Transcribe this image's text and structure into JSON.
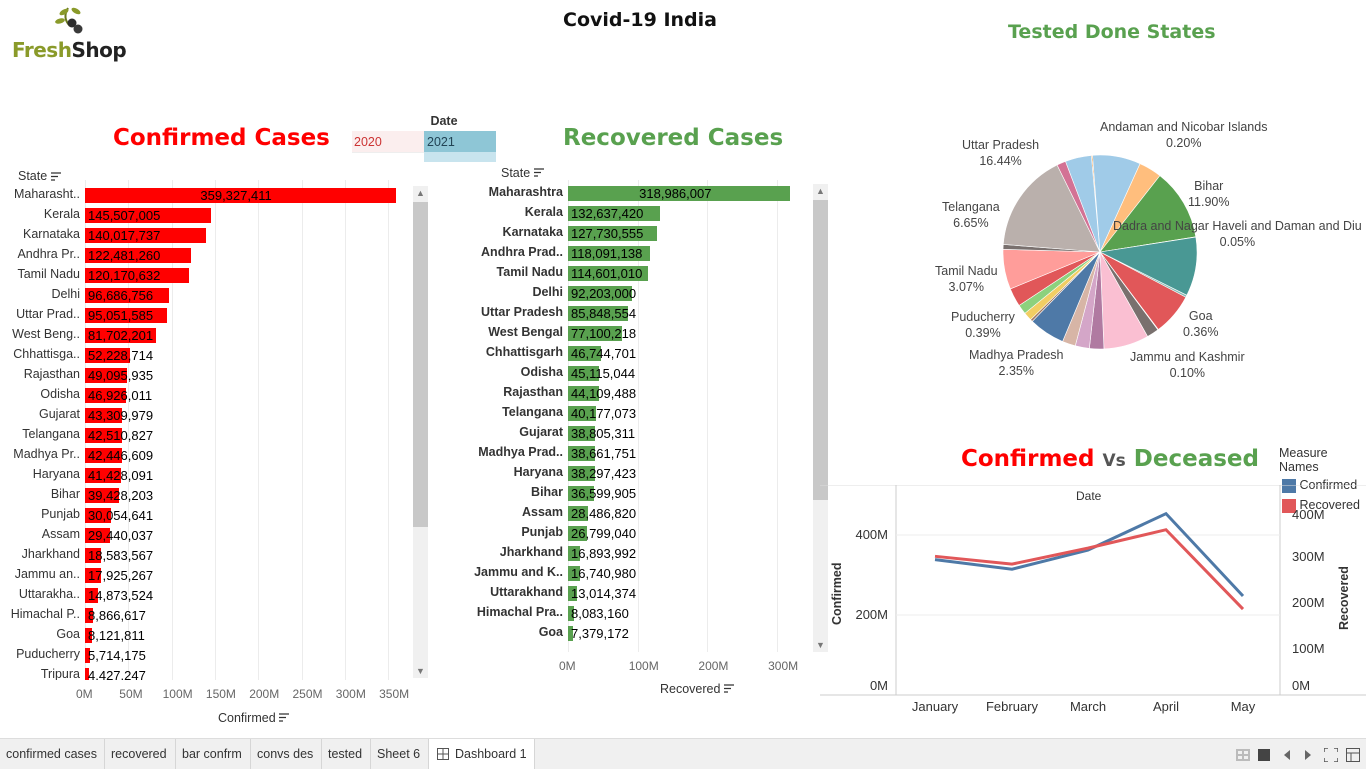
{
  "logo": {
    "word1": "Fresh",
    "word2": "Shop"
  },
  "header": {
    "title": "Covid-19 India"
  },
  "date_filter": {
    "label": "Date",
    "years": [
      "2020",
      "2021"
    ]
  },
  "confirmed": {
    "title": "Confirmed Cases",
    "state_header": "State",
    "axis_title": "Confirmed",
    "ticks": [
      "0M",
      "50M",
      "100M",
      "150M",
      "200M",
      "250M",
      "300M",
      "350M"
    ],
    "color": "#ff0000",
    "rows": [
      {
        "label": "Maharasht..",
        "value": 359327411,
        "text": "359,327,411"
      },
      {
        "label": "Kerala",
        "value": 145507005,
        "text": "145,507,005"
      },
      {
        "label": "Karnataka",
        "value": 140017737,
        "text": "140,017,737"
      },
      {
        "label": "Andhra Pr..",
        "value": 122481260,
        "text": "122,481,260"
      },
      {
        "label": "Tamil Nadu",
        "value": 120170632,
        "text": "120,170,632"
      },
      {
        "label": "Delhi",
        "value": 96686756,
        "text": "96,686,756"
      },
      {
        "label": "Uttar Prad..",
        "value": 95051585,
        "text": "95,051,585"
      },
      {
        "label": "West Beng..",
        "value": 81702201,
        "text": "81,702,201"
      },
      {
        "label": "Chhattisga..",
        "value": 52228714,
        "text": "52,228,714"
      },
      {
        "label": "Rajasthan",
        "value": 49095935,
        "text": "49,095,935"
      },
      {
        "label": "Odisha",
        "value": 46926011,
        "text": "46,926,011"
      },
      {
        "label": "Gujarat",
        "value": 43309979,
        "text": "43,309,979"
      },
      {
        "label": "Telangana",
        "value": 42510827,
        "text": "42,510,827"
      },
      {
        "label": "Madhya Pr..",
        "value": 42446609,
        "text": "42,446,609"
      },
      {
        "label": "Haryana",
        "value": 41428091,
        "text": "41,428,091"
      },
      {
        "label": "Bihar",
        "value": 39428203,
        "text": "39,428,203"
      },
      {
        "label": "Punjab",
        "value": 30054641,
        "text": "30,054,641"
      },
      {
        "label": "Assam",
        "value": 29440037,
        "text": "29,440,037"
      },
      {
        "label": "Jharkhand",
        "value": 18583567,
        "text": "18,583,567"
      },
      {
        "label": "Jammu an..",
        "value": 17925267,
        "text": "17,925,267"
      },
      {
        "label": "Uttarakha..",
        "value": 14873524,
        "text": "14,873,524"
      },
      {
        "label": "Himachal P..",
        "value": 8866617,
        "text": "8,866,617"
      },
      {
        "label": "Goa",
        "value": 8121811,
        "text": "8,121,811"
      },
      {
        "label": "Puducherry",
        "value": 5714175,
        "text": "5,714,175"
      },
      {
        "label": "Tripura",
        "value": 4427247,
        "text": "4,427,247"
      }
    ]
  },
  "recovered": {
    "title": "Recovered Cases",
    "state_header": "State",
    "axis_title": "Recovered",
    "ticks": [
      "0M",
      "100M",
      "200M",
      "300M"
    ],
    "color": "#59a14f",
    "rows": [
      {
        "label": "Maharashtra",
        "value": 318986007,
        "text": "318,986,007"
      },
      {
        "label": "Kerala",
        "value": 132637420,
        "text": "132,637,420"
      },
      {
        "label": "Karnataka",
        "value": 127730555,
        "text": "127,730,555"
      },
      {
        "label": "Andhra Prad..",
        "value": 118091138,
        "text": "118,091,138"
      },
      {
        "label": "Tamil Nadu",
        "value": 114601010,
        "text": "114,601,010"
      },
      {
        "label": "Delhi",
        "value": 92203000,
        "text": "92,203,000"
      },
      {
        "label": "Uttar Pradesh",
        "value": 85848554,
        "text": "85,848,554"
      },
      {
        "label": "West Bengal",
        "value": 77100218,
        "text": "77,100,218"
      },
      {
        "label": "Chhattisgarh",
        "value": 46744701,
        "text": "46,744,701"
      },
      {
        "label": "Odisha",
        "value": 45115044,
        "text": "45,115,044"
      },
      {
        "label": "Rajasthan",
        "value": 44109488,
        "text": "44,109,488"
      },
      {
        "label": "Telangana",
        "value": 40177073,
        "text": "40,177,073"
      },
      {
        "label": "Gujarat",
        "value": 38805311,
        "text": "38,805,311"
      },
      {
        "label": "Madhya Prad..",
        "value": 38661751,
        "text": "38,661,751"
      },
      {
        "label": "Haryana",
        "value": 38297423,
        "text": "38,297,423"
      },
      {
        "label": "Bihar",
        "value": 36599905,
        "text": "36,599,905"
      },
      {
        "label": "Assam",
        "value": 28486820,
        "text": "28,486,820"
      },
      {
        "label": "Punjab",
        "value": 26799040,
        "text": "26,799,040"
      },
      {
        "label": "Jharkhand",
        "value": 16893992,
        "text": "16,893,992"
      },
      {
        "label": "Jammu and K..",
        "value": 16740980,
        "text": "16,740,980"
      },
      {
        "label": "Uttarakhand",
        "value": 13014374,
        "text": "13,014,374"
      },
      {
        "label": "Himachal Pra..",
        "value": 8083160,
        "text": "8,083,160"
      },
      {
        "label": "Goa",
        "value": 7379172,
        "text": "7,379,172"
      }
    ]
  },
  "pie": {
    "title": "Tested Done States",
    "labels": [
      {
        "name": "Andaman and Nicobar Islands",
        "pct": "0.20%"
      },
      {
        "name": "Bihar",
        "pct": "11.90%"
      },
      {
        "name": "Dadra and Nagar Haveli and Daman and Diu",
        "pct": "0.05%"
      },
      {
        "name": "Goa",
        "pct": "0.36%"
      },
      {
        "name": "Jammu and Kashmir",
        "pct": "0.10%"
      },
      {
        "name": "Madhya Pradesh",
        "pct": "2.35%"
      },
      {
        "name": "Puducherry",
        "pct": "0.39%"
      },
      {
        "name": "Tamil Nadu",
        "pct": "3.07%"
      },
      {
        "name": "Telangana",
        "pct": "6.65%"
      },
      {
        "name": "Uttar Pradesh",
        "pct": "16.44%"
      }
    ],
    "slices": [
      {
        "pct": 0.2,
        "color": "#f28e2b"
      },
      {
        "pct": 8.0,
        "color": "#a0cbe8"
      },
      {
        "pct": 3.8,
        "color": "#ffbe7d"
      },
      {
        "pct": 11.9,
        "color": "#59a14f"
      },
      {
        "pct": 0.05,
        "color": "#b6992d"
      },
      {
        "pct": 9.8,
        "color": "#499894"
      },
      {
        "pct": 0.36,
        "color": "#86bcb6"
      },
      {
        "pct": 7.0,
        "color": "#e15759"
      },
      {
        "pct": 0.1,
        "color": "#ff9d9a"
      },
      {
        "pct": 2.0,
        "color": "#79706e"
      },
      {
        "pct": 7.5,
        "color": "#fabfd2"
      },
      {
        "pct": 2.4,
        "color": "#b07aa1"
      },
      {
        "pct": 2.35,
        "color": "#d4a6c8"
      },
      {
        "pct": 2.2,
        "color": "#d7b5a6"
      },
      {
        "pct": 6.0,
        "color": "#4e79a7"
      },
      {
        "pct": 0.39,
        "color": "#9d7660"
      },
      {
        "pct": 1.4,
        "color": "#f1ce63"
      },
      {
        "pct": 1.6,
        "color": "#8cd17d"
      },
      {
        "pct": 3.07,
        "color": "#e15759"
      },
      {
        "pct": 6.65,
        "color": "#ff9d9a"
      },
      {
        "pct": 0.8,
        "color": "#79706e"
      },
      {
        "pct": 16.44,
        "color": "#bab0ac"
      },
      {
        "pct": 1.5,
        "color": "#d37295"
      },
      {
        "pct": 4.35,
        "color": "#a0cbe8"
      }
    ]
  },
  "line": {
    "title_a": "Confirmed",
    "title_vs": "Vs",
    "title_b": "Deceased",
    "x_title": "Date",
    "left_axis_title": "Confirmed",
    "right_axis_title": "Recovered",
    "left_ticks": [
      "400M",
      "200M",
      "0M"
    ],
    "right_ticks": [
      "400M",
      "300M",
      "200M",
      "100M",
      "0M"
    ],
    "legend_title": "Measure Names",
    "legend": [
      {
        "name": "Confirmed",
        "color": "#4e79a7"
      },
      {
        "name": "Recovered",
        "color": "#e15759"
      }
    ]
  },
  "chart_data": [
    {
      "type": "bar",
      "title": "Confirmed Cases",
      "xlabel": "Confirmed",
      "ylabel": "State",
      "xlim": [
        0,
        370000000
      ],
      "categories": [
        "Maharasht..",
        "Kerala",
        "Karnataka",
        "Andhra Pr..",
        "Tamil Nadu",
        "Delhi",
        "Uttar Prad..",
        "West Beng..",
        "Chhattisga..",
        "Rajasthan",
        "Odisha",
        "Gujarat",
        "Telangana",
        "Madhya Pr..",
        "Haryana",
        "Bihar",
        "Punjab",
        "Assam",
        "Jharkhand",
        "Jammu an..",
        "Uttarakha..",
        "Himachal P..",
        "Goa",
        "Puducherry",
        "Tripura"
      ],
      "values": [
        359327411,
        145507005,
        140017737,
        122481260,
        120170632,
        96686756,
        95051585,
        81702201,
        52228714,
        49095935,
        46926011,
        43309979,
        42510827,
        42446609,
        41428091,
        39428203,
        30054641,
        29440037,
        18583567,
        17925267,
        14873524,
        8866617,
        8121811,
        5714175,
        4427247
      ]
    },
    {
      "type": "bar",
      "title": "Recovered Cases",
      "xlabel": "Recovered",
      "ylabel": "State",
      "xlim": [
        0,
        335000000
      ],
      "categories": [
        "Maharashtra",
        "Kerala",
        "Karnataka",
        "Andhra Prad..",
        "Tamil Nadu",
        "Delhi",
        "Uttar Pradesh",
        "West Bengal",
        "Chhattisgarh",
        "Odisha",
        "Rajasthan",
        "Telangana",
        "Gujarat",
        "Madhya Prad..",
        "Haryana",
        "Bihar",
        "Assam",
        "Punjab",
        "Jharkhand",
        "Jammu and K..",
        "Uttarakhand",
        "Himachal Pra..",
        "Goa"
      ],
      "values": [
        318986007,
        132637420,
        127730555,
        118091138,
        114601010,
        92203000,
        85848554,
        77100218,
        46744701,
        45115044,
        44109488,
        40177073,
        38805311,
        38661751,
        38297423,
        36599905,
        28486820,
        26799040,
        16893992,
        16740980,
        13014374,
        8083160,
        7379172
      ]
    },
    {
      "type": "pie",
      "title": "Tested Done States",
      "categories": [
        "Andaman and Nicobar Islands",
        "Bihar",
        "Dadra and Nagar Haveli and Daman and Diu",
        "Goa",
        "Jammu and Kashmir",
        "Madhya Pradesh",
        "Puducherry",
        "Tamil Nadu",
        "Telangana",
        "Uttar Pradesh"
      ],
      "values": [
        0.2,
        11.9,
        0.05,
        0.36,
        0.1,
        2.35,
        0.39,
        3.07,
        6.65,
        16.44
      ]
    },
    {
      "type": "line",
      "title": "Confirmed Vs Deceased",
      "xlabel": "Date",
      "x": [
        "January",
        "February",
        "March",
        "April",
        "May"
      ],
      "series": [
        {
          "name": "Confirmed",
          "axis": "left",
          "values": [
            330000000,
            305000000,
            355000000,
            450000000,
            235000000
          ],
          "ylim": [
            0,
            470000000
          ]
        },
        {
          "name": "Recovered",
          "axis": "right",
          "values": [
            317000000,
            298000000,
            337000000,
            382000000,
            188000000
          ],
          "ylim": [
            0,
            440000000
          ]
        }
      ]
    }
  ],
  "tabs": [
    "confirmed cases",
    "recovered",
    "bar confrm",
    "convs des",
    "tested",
    "Sheet 6",
    "Dashboard 1"
  ]
}
